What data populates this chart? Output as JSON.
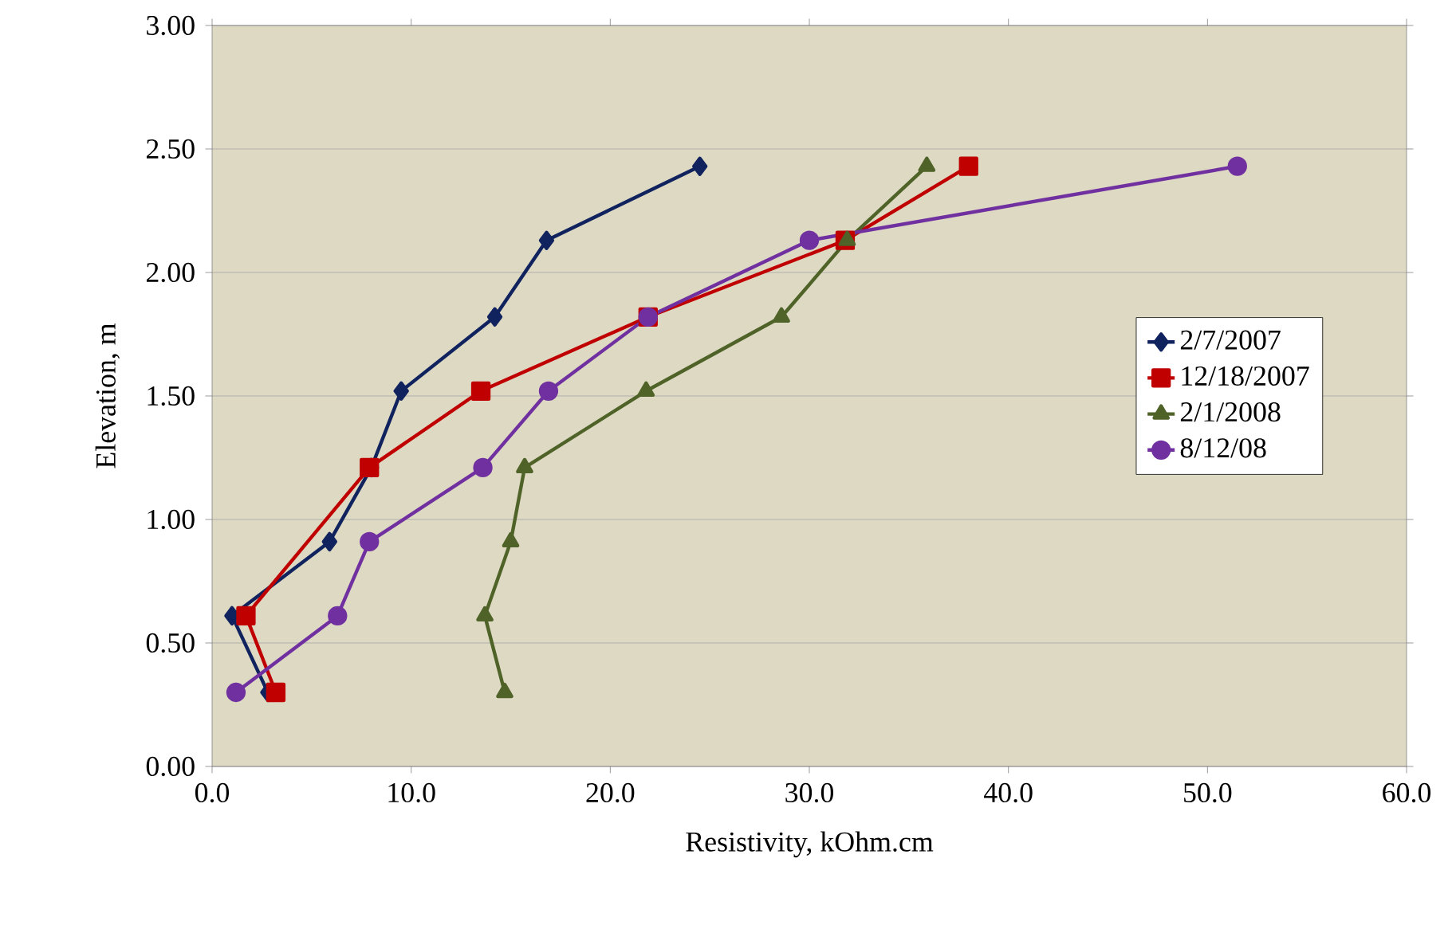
{
  "chart_data": {
    "type": "line",
    "xlabel": "Resistivity, kOhm.cm",
    "ylabel": "Elevation, m",
    "xlim": [
      0,
      60
    ],
    "ylim": [
      0,
      3
    ],
    "xticks": [
      {
        "value": 0,
        "label": "0.0"
      },
      {
        "value": 10,
        "label": "10.0"
      },
      {
        "value": 20,
        "label": "20.0"
      },
      {
        "value": 30,
        "label": "30.0"
      },
      {
        "value": 40,
        "label": "40.0"
      },
      {
        "value": 50,
        "label": "50.0"
      },
      {
        "value": 60,
        "label": "60.0"
      }
    ],
    "yticks": [
      {
        "value": 0,
        "label": "0.00"
      },
      {
        "value": 0.5,
        "label": "0.50"
      },
      {
        "value": 1,
        "label": "1.00"
      },
      {
        "value": 1.5,
        "label": "1.50"
      },
      {
        "value": 2,
        "label": "2.00"
      },
      {
        "value": 2.5,
        "label": "2.50"
      },
      {
        "value": 3,
        "label": "3.00"
      }
    ],
    "grid": "y",
    "legend": "right",
    "line_style": "solid",
    "series": [
      {
        "name": "2/7/2007",
        "color": "#10235e",
        "marker": "diamond",
        "x": [
          24.5,
          16.8,
          14.2,
          9.5,
          8.0,
          5.9,
          1.0,
          2.8
        ],
        "values": [
          2.43,
          2.13,
          1.82,
          1.52,
          1.21,
          0.91,
          0.61,
          0.3
        ]
      },
      {
        "name": "12/18/2007",
        "color": "#c00000",
        "marker": "square",
        "x": [
          38.0,
          31.8,
          21.9,
          13.5,
          7.9,
          1.7,
          3.2
        ],
        "values": [
          2.43,
          2.13,
          1.82,
          1.52,
          1.21,
          0.61,
          0.3
        ]
      },
      {
        "name": "2/1/2008",
        "color": "#4f6228",
        "marker": "triangle",
        "x": [
          35.9,
          31.9,
          28.6,
          21.8,
          15.7,
          15.0,
          13.7,
          14.7
        ],
        "values": [
          2.43,
          2.13,
          1.82,
          1.52,
          1.21,
          0.91,
          0.61,
          0.3
        ]
      },
      {
        "name": "8/12/08",
        "color": "#7030a0",
        "marker": "circle",
        "x": [
          51.5,
          30.0,
          21.9,
          16.9,
          13.6,
          7.9,
          6.3,
          1.2
        ],
        "values": [
          2.43,
          2.13,
          1.82,
          1.52,
          1.21,
          0.91,
          0.61,
          0.3
        ]
      }
    ]
  }
}
